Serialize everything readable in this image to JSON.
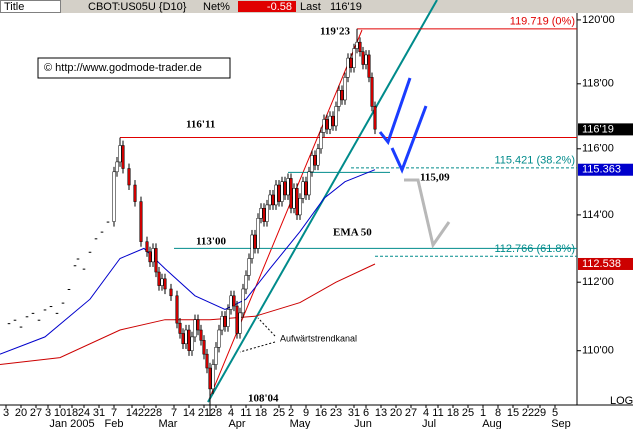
{
  "chart_data": {
    "type": "candlestick",
    "header": {
      "title": "Title",
      "symbol": "CBOT:US05U {D10}",
      "net_label": "Net%",
      "net_value": -0.58,
      "last_label": "Last"
    },
    "last": {
      "value": 116.59375,
      "label": "116'19"
    },
    "copyright": "© http://www.godmode-trader.de",
    "scale_label": "LOG",
    "log": true,
    "up_color": "#ffffff",
    "down_color": "#cc0000",
    "x": [
      3,
      5,
      7,
      9,
      11,
      13,
      15,
      17,
      19,
      21,
      23,
      25,
      26,
      28,
      30,
      32,
      34,
      36,
      38,
      39,
      40,
      41,
      43,
      45,
      47,
      49,
      50,
      51,
      52,
      53,
      54,
      55,
      57,
      59,
      60,
      61,
      62,
      63,
      64,
      65,
      66,
      67,
      68,
      69,
      70,
      71,
      72,
      73,
      74,
      75,
      76,
      77,
      78,
      79,
      80,
      81,
      82,
      83,
      84,
      85,
      86,
      87,
      88,
      89,
      90,
      91,
      92,
      93,
      94,
      95,
      96,
      97,
      98,
      99,
      100,
      101,
      102,
      103,
      104,
      105,
      106,
      107,
      108,
      109,
      110,
      111,
      112,
      113,
      114,
      115,
      116,
      117,
      118,
      119,
      120,
      121,
      122,
      123,
      124,
      125
    ],
    "open": [
      110.8,
      110.9,
      110.7,
      111.0,
      111.1,
      110.9,
      111.2,
      111.3,
      111.1,
      111.4,
      111.8,
      112.5,
      112.7,
      112.4,
      112.9,
      113.3,
      113.5,
      113.8,
      113.8,
      115.3,
      115.6,
      116.1,
      115.4,
      114.9,
      114.4,
      113.2,
      112.9,
      112.6,
      113.0,
      112.3,
      111.9,
      112.1,
      111.8,
      111.6,
      110.8,
      110.5,
      110.2,
      110.6,
      110.0,
      110.4,
      110.9,
      110.6,
      110.3,
      109.9,
      109.5,
      108.9,
      109.6,
      110.1,
      110.6,
      111.0,
      110.7,
      111.2,
      111.6,
      111.3,
      110.5,
      111.1,
      111.8,
      112.2,
      112.7,
      113.4,
      113.0,
      113.9,
      114.2,
      113.8,
      114.3,
      114.6,
      114.3,
      114.9,
      114.4,
      115.0,
      114.6,
      115.1,
      114.2,
      114.8,
      114.0,
      114.5,
      115.0,
      114.6,
      115.3,
      115.8,
      115.5,
      116.0,
      116.5,
      116.9,
      116.6,
      117.0,
      116.7,
      117.3,
      117.8,
      117.5,
      118.2,
      118.8,
      118.5,
      119.1,
      119.3,
      119.0,
      118.6,
      118.9,
      118.2,
      117.3
    ],
    "high": [
      110.8,
      110.9,
      110.7,
      111.0,
      111.1,
      110.9,
      111.2,
      111.3,
      111.1,
      111.4,
      111.8,
      112.5,
      112.7,
      112.4,
      112.9,
      113.3,
      113.5,
      113.8,
      115.45,
      115.75,
      116.34,
      116.25,
      115.55,
      115.05,
      114.55,
      113.35,
      113.05,
      113.15,
      113.15,
      112.45,
      112.25,
      112.25,
      111.95,
      111.75,
      110.95,
      110.65,
      110.75,
      110.75,
      110.55,
      111.05,
      111.05,
      110.75,
      110.45,
      110.05,
      109.65,
      109.75,
      110.25,
      110.75,
      111.15,
      111.15,
      111.35,
      111.75,
      111.75,
      111.45,
      111.25,
      111.95,
      112.35,
      112.85,
      113.55,
      113.55,
      114.05,
      114.35,
      114.35,
      114.45,
      114.75,
      114.75,
      115.05,
      115.05,
      115.15,
      115.15,
      115.25,
      115.25,
      114.95,
      114.95,
      114.65,
      115.15,
      115.15,
      115.45,
      115.95,
      115.95,
      116.15,
      116.65,
      117.05,
      117.05,
      117.15,
      117.15,
      117.45,
      117.95,
      117.95,
      118.35,
      118.95,
      118.95,
      119.25,
      119.72,
      119.45,
      119.15,
      119.05,
      119.05,
      118.35,
      117.45
    ],
    "low": [
      110.8,
      110.9,
      110.7,
      111.0,
      111.1,
      110.9,
      111.2,
      111.3,
      111.1,
      111.4,
      111.8,
      112.5,
      112.7,
      112.4,
      112.9,
      113.3,
      113.5,
      113.8,
      113.65,
      115.15,
      115.45,
      115.25,
      114.75,
      114.25,
      113.05,
      112.75,
      112.45,
      112.45,
      112.15,
      111.75,
      111.75,
      111.65,
      111.45,
      110.65,
      110.35,
      110.05,
      110.05,
      109.85,
      109.85,
      110.25,
      110.45,
      110.15,
      109.75,
      109.35,
      108.13,
      108.75,
      109.45,
      109.95,
      110.45,
      110.55,
      110.55,
      111.05,
      111.15,
      110.35,
      110.35,
      110.95,
      111.65,
      112.05,
      112.55,
      112.85,
      112.85,
      113.75,
      113.65,
      113.65,
      114.15,
      114.15,
      114.15,
      114.25,
      114.25,
      114.45,
      114.45,
      114.05,
      114.05,
      113.85,
      113.85,
      114.35,
      114.45,
      114.45,
      115.15,
      115.35,
      115.35,
      115.85,
      116.35,
      116.45,
      116.45,
      116.55,
      116.55,
      117.15,
      117.35,
      117.35,
      118.05,
      118.35,
      118.35,
      118.95,
      118.85,
      118.45,
      118.45,
      118.05,
      117.15,
      116.45
    ],
    "close": [
      110.8,
      110.9,
      110.7,
      111.0,
      111.1,
      110.9,
      111.2,
      111.3,
      111.1,
      111.4,
      111.8,
      112.5,
      112.7,
      112.4,
      112.9,
      113.3,
      113.5,
      113.8,
      115.3,
      115.6,
      116.1,
      115.4,
      114.9,
      114.4,
      113.2,
      112.9,
      112.6,
      113.0,
      112.3,
      111.9,
      112.1,
      111.8,
      111.6,
      110.8,
      110.5,
      110.2,
      110.6,
      110.0,
      110.4,
      110.9,
      110.6,
      110.3,
      109.9,
      109.5,
      108.9,
      109.6,
      110.1,
      110.6,
      111.0,
      110.7,
      111.2,
      111.6,
      111.3,
      110.5,
      111.1,
      111.8,
      112.2,
      112.7,
      113.4,
      113.0,
      113.9,
      114.2,
      113.8,
      114.3,
      114.6,
      114.3,
      114.9,
      114.4,
      115.0,
      114.6,
      115.1,
      114.2,
      114.8,
      114.0,
      114.5,
      115.0,
      114.6,
      115.3,
      115.8,
      115.5,
      116.0,
      116.5,
      116.9,
      116.6,
      117.0,
      116.7,
      117.3,
      117.8,
      117.5,
      118.2,
      118.8,
      118.5,
      119.1,
      119.3,
      119.0,
      118.6,
      118.9,
      118.2,
      117.3,
      116.6
    ],
    "ema": [
      {
        "name": "EMA 50",
        "color": "#0000cc",
        "x": [
          0,
          15,
          30,
          40,
          48,
          55,
          65,
          75,
          82,
          90,
          100,
          108,
          115,
          125
        ],
        "values": [
          109.9,
          110.4,
          111.5,
          112.7,
          113.0,
          112.4,
          111.6,
          111.2,
          111.5,
          112.4,
          113.5,
          114.5,
          115.0,
          115.363
        ]
      },
      {
        "color": "#cc0000",
        "x": [
          0,
          20,
          40,
          55,
          70,
          85,
          100,
          112,
          125
        ],
        "values": [
          109.6,
          109.8,
          110.6,
          110.9,
          110.9,
          111.0,
          111.4,
          112.0,
          112.538
        ]
      }
    ],
    "levels": [
      {
        "value": 119.719,
        "label": "119.719 (0%)",
        "color": "#e00000",
        "style": "solid",
        "from": 119
      },
      {
        "value": 116.34375,
        "color": "#e00000",
        "style": "solid",
        "from": 40
      },
      {
        "value": 115.421,
        "label": "115.421 (38.2%)",
        "color": "#008b8b",
        "style": "dashed",
        "from": 117
      },
      {
        "value": 115.28125,
        "color": "#008b8b",
        "style": "solid",
        "from": 96,
        "to": 130
      },
      {
        "value": 113.0,
        "color": "#008b8b",
        "style": "solid",
        "from": 58
      },
      {
        "value": 112.766,
        "label": "112.766 (61.8%)",
        "color": "#008b8b",
        "style": "dashed",
        "from": 125
      }
    ],
    "annotations": [
      "119'23",
      "116'11",
      "113'00",
      "115,09",
      "108'04",
      "Aufwärtstrendkanal"
    ],
    "xlim": [
      0,
      192.33
    ],
    "ylim": [
      108.44,
      120.63
    ],
    "yticks": [
      {
        "value": 110,
        "label": "110'00"
      },
      {
        "value": 112,
        "label": "112'00"
      },
      {
        "value": 114,
        "label": "114'00"
      },
      {
        "value": 116,
        "label": "116'00"
      },
      {
        "value": 118,
        "label": "118'00"
      },
      {
        "value": 120,
        "label": "120'00"
      }
    ],
    "xticks": [
      {
        "value": 2,
        "label": "3"
      },
      {
        "value": 7,
        "label": "20"
      },
      {
        "value": 12,
        "label": "27"
      },
      {
        "value": 16,
        "label": "3"
      },
      {
        "value": 20,
        "label": "10"
      },
      {
        "value": 24,
        "label": "18"
      },
      {
        "value": 28,
        "label": "24"
      },
      {
        "value": 33,
        "label": "31"
      },
      {
        "value": 38,
        "label": "7"
      },
      {
        "value": 44,
        "label": "14"
      },
      {
        "value": 48,
        "label": "22"
      },
      {
        "value": 52,
        "label": "28"
      },
      {
        "value": 58,
        "label": "7"
      },
      {
        "value": 63,
        "label": "14"
      },
      {
        "value": 68,
        "label": "21"
      },
      {
        "value": 72,
        "label": "28"
      },
      {
        "value": 77,
        "label": "4"
      },
      {
        "value": 82,
        "label": "11"
      },
      {
        "value": 87,
        "label": "18"
      },
      {
        "value": 93,
        "label": "25"
      },
      {
        "value": 97,
        "label": "2"
      },
      {
        "value": 102,
        "label": "9"
      },
      {
        "value": 107,
        "label": "16"
      },
      {
        "value": 112,
        "label": "23"
      },
      {
        "value": 118,
        "label": "31"
      },
      {
        "value": 122,
        "label": "6"
      },
      {
        "value": 127,
        "label": "13"
      },
      {
        "value": 132,
        "label": "20"
      },
      {
        "value": 137,
        "label": "27"
      },
      {
        "value": 142,
        "label": "4"
      },
      {
        "value": 146,
        "label": "11"
      },
      {
        "value": 151,
        "label": "18"
      },
      {
        "value": 156,
        "label": "25"
      },
      {
        "value": 161,
        "label": "1"
      },
      {
        "value": 166,
        "label": "8"
      },
      {
        "value": 171,
        "label": "15"
      },
      {
        "value": 176,
        "label": "22"
      },
      {
        "value": 180,
        "label": "29"
      },
      {
        "value": 185,
        "label": "5"
      }
    ],
    "months": [
      {
        "value": 24,
        "label": "Jan 2005"
      },
      {
        "value": 38,
        "label": "Feb"
      },
      {
        "value": 56,
        "label": "Mar"
      },
      {
        "value": 79,
        "label": "Apr"
      },
      {
        "value": 100,
        "label": "May"
      },
      {
        "value": 121,
        "label": "Jun"
      },
      {
        "value": 143,
        "label": "Jul"
      },
      {
        "value": 164,
        "label": "Aug"
      },
      {
        "value": 187,
        "label": "Sep"
      }
    ]
  }
}
